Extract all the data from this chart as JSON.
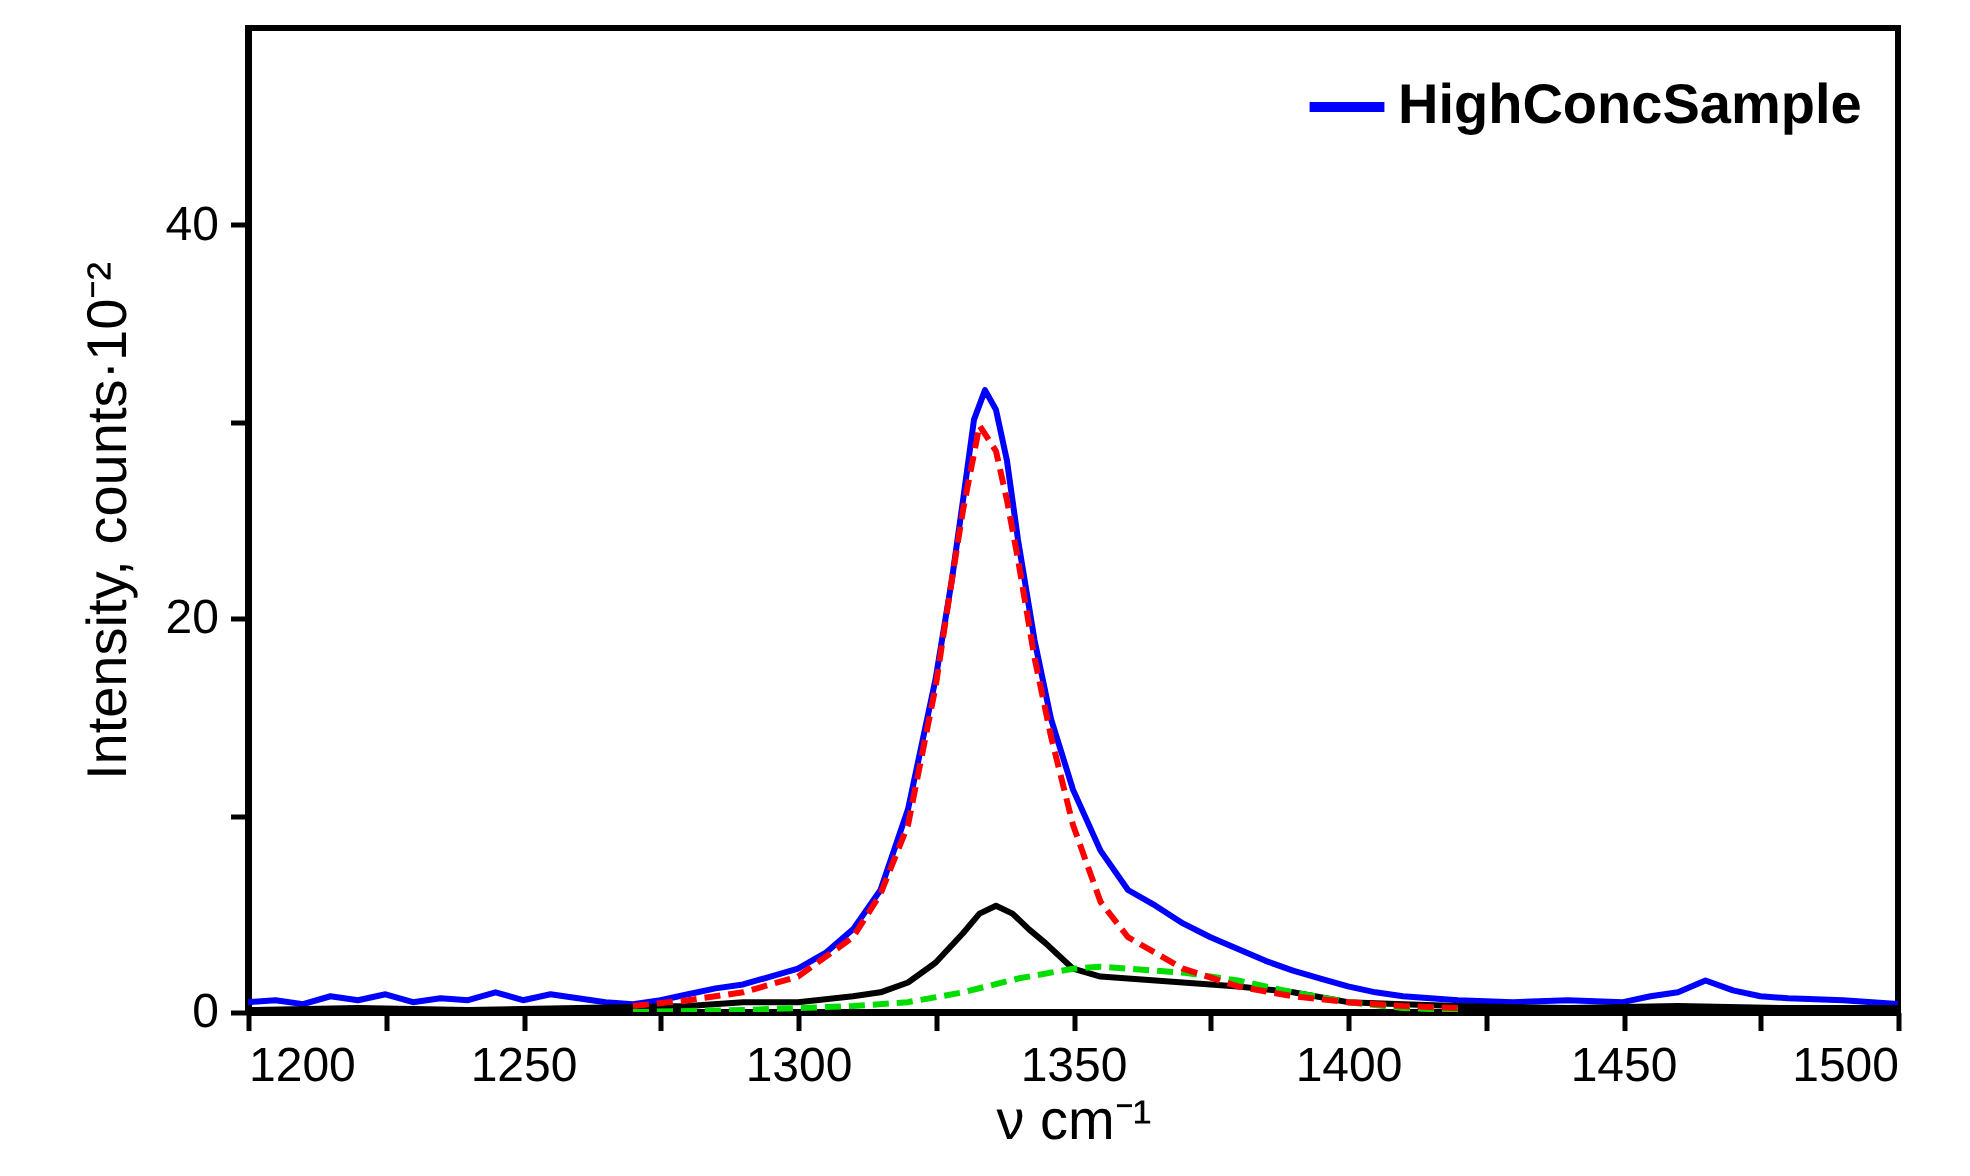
{
  "chart_data": {
    "type": "line",
    "xlabel": "ν cm⁻¹",
    "ylabel": "Intensity, counts·10⁻²",
    "xlim": [
      1200,
      1500
    ],
    "ylim": [
      0,
      50
    ],
    "xticks": [
      1200,
      {
        "value": 1225,
        "label": null
      },
      1250,
      {
        "value": 1275,
        "label": null
      },
      1300,
      {
        "value": 1325,
        "label": null
      },
      1350,
      {
        "value": 1375,
        "label": null
      },
      1400,
      {
        "value": 1425,
        "label": null
      },
      1450,
      {
        "value": 1475,
        "label": null
      },
      1500
    ],
    "yticks": [
      0,
      {
        "value": 10,
        "label": null
      },
      20,
      {
        "value": 30,
        "label": null
      },
      40
    ],
    "legend": "top right",
    "grid": false,
    "marker": "none",
    "series": [
      {
        "name": "HighConcSample",
        "color": "#0000ff",
        "line_style": "solid",
        "x": [
          1200,
          1205,
          1210,
          1215,
          1220,
          1225,
          1230,
          1235,
          1240,
          1245,
          1250,
          1255,
          1260,
          1265,
          1270,
          1275,
          1280,
          1285,
          1290,
          1295,
          1300,
          1305,
          1310,
          1315,
          1320,
          1325,
          1328,
          1330,
          1332,
          1334,
          1336,
          1338,
          1340,
          1343,
          1346,
          1350,
          1355,
          1360,
          1365,
          1370,
          1375,
          1380,
          1385,
          1390,
          1395,
          1400,
          1405,
          1410,
          1420,
          1430,
          1440,
          1450,
          1455,
          1460,
          1465,
          1470,
          1475,
          1480,
          1490,
          1500
        ],
        "values": [
          0.5,
          0.6,
          0.4,
          0.8,
          0.6,
          0.9,
          0.5,
          0.7,
          0.6,
          1.0,
          0.6,
          0.9,
          0.7,
          0.5,
          0.4,
          0.6,
          0.9,
          1.2,
          1.4,
          1.8,
          2.2,
          3.0,
          4.2,
          6.2,
          10.3,
          16.9,
          22,
          26,
          30.1,
          31.6,
          30.6,
          28,
          24,
          18.9,
          14.9,
          11.3,
          8.2,
          6.2,
          5.4,
          4.5,
          3.8,
          3.2,
          2.6,
          2.1,
          1.7,
          1.3,
          1.0,
          0.8,
          0.6,
          0.5,
          0.6,
          0.5,
          0.8,
          1.0,
          1.6,
          1.1,
          0.8,
          0.7,
          0.6,
          0.4
        ]
      },
      {
        "color": "#ff0000",
        "line_style": "dashed",
        "x": [
          1270,
          1280,
          1290,
          1300,
          1310,
          1315,
          1320,
          1325,
          1328,
          1330,
          1333,
          1336,
          1338,
          1340,
          1343,
          1346,
          1350,
          1355,
          1360,
          1370,
          1380,
          1390,
          1400,
          1410,
          1420
        ],
        "values": [
          0.3,
          0.6,
          1.0,
          1.8,
          3.8,
          6.0,
          9.5,
          16.5,
          22,
          25.5,
          29.8,
          28.5,
          26,
          23,
          18,
          14,
          9.5,
          5.6,
          3.8,
          2.2,
          1.3,
          0.8,
          0.5,
          0.3,
          0.2
        ]
      },
      {
        "color": "#000000",
        "line_style": "solid",
        "x": [
          1200,
          1220,
          1240,
          1260,
          1280,
          1290,
          1300,
          1310,
          1315,
          1320,
          1325,
          1330,
          1333,
          1336,
          1339,
          1342,
          1345,
          1350,
          1355,
          1360,
          1370,
          1380,
          1390,
          1400,
          1410,
          1420,
          1440,
          1460,
          1480,
          1500
        ],
        "values": [
          0.1,
          0.2,
          0.1,
          0.2,
          0.3,
          0.5,
          0.5,
          0.8,
          1.0,
          1.5,
          2.5,
          4.0,
          5.0,
          5.4,
          5.0,
          4.2,
          3.5,
          2.2,
          1.8,
          1.7,
          1.5,
          1.3,
          1.0,
          0.5,
          0.4,
          0.3,
          0.2,
          0.3,
          0.2,
          0.2
        ]
      },
      {
        "color": "#00dd00",
        "line_style": "dashed",
        "x": [
          1270,
          1290,
          1300,
          1310,
          1320,
          1330,
          1340,
          1350,
          1355,
          1360,
          1370,
          1380,
          1385,
          1390,
          1400,
          1410,
          1420
        ],
        "values": [
          0.0,
          0.1,
          0.2,
          0.3,
          0.5,
          1.0,
          1.7,
          2.2,
          2.3,
          2.2,
          2.0,
          1.6,
          1.3,
          1.0,
          0.5,
          0.2,
          0.1
        ]
      }
    ]
  }
}
